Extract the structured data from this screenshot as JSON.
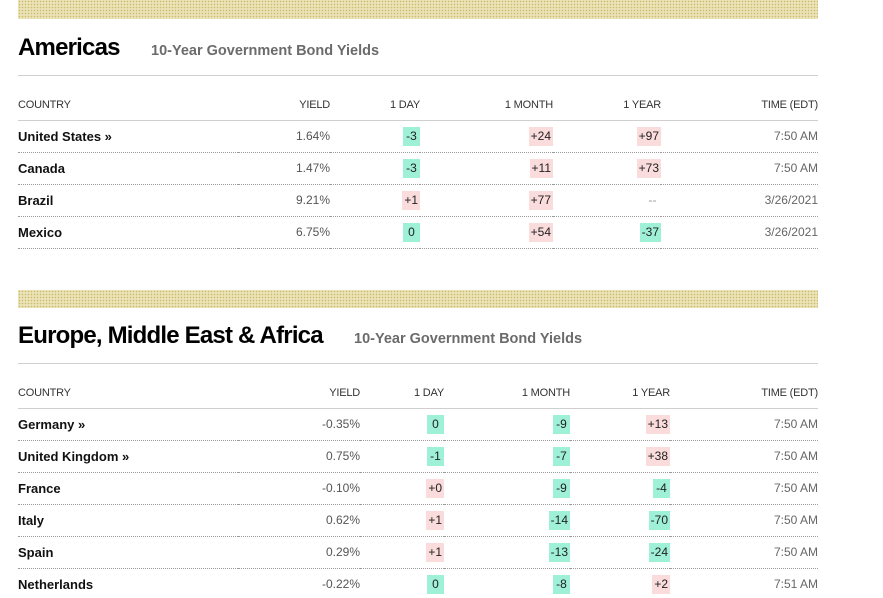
{
  "americas": {
    "title": "Americas",
    "subtitle": "10-Year Government Bond Yields",
    "columns": [
      "COUNTRY",
      "YIELD",
      "1 DAY",
      "1 MONTH",
      "1 YEAR",
      "TIME (EDT)"
    ],
    "rows": [
      {
        "country": "United States »",
        "yield": "1.64%",
        "day": "-3",
        "month": "+24",
        "year": "+97",
        "time": "7:50 AM"
      },
      {
        "country": "Canada",
        "yield": "1.47%",
        "day": "-3",
        "month": "+11",
        "year": "+73",
        "time": "7:50 AM"
      },
      {
        "country": "Brazil",
        "yield": "9.21%",
        "day": "+1",
        "month": "+77",
        "year": "--",
        "time": "3/26/2021"
      },
      {
        "country": "Mexico",
        "yield": "6.75%",
        "day": "0",
        "month": "+54",
        "year": "-37",
        "time": "3/26/2021"
      }
    ]
  },
  "emea": {
    "title": "Europe, Middle East & Africa",
    "subtitle": "10-Year Government Bond Yields",
    "columns": [
      "COUNTRY",
      "YIELD",
      "1 DAY",
      "1 MONTH",
      "1 YEAR",
      "TIME (EDT)"
    ],
    "rows": [
      {
        "country": "Germany »",
        "yield": "-0.35%",
        "day": "0",
        "month": "-9",
        "year": "+13",
        "time": "7:50 AM"
      },
      {
        "country": "United Kingdom »",
        "yield": "0.75%",
        "day": "-1",
        "month": "-7",
        "year": "+38",
        "time": "7:50 AM"
      },
      {
        "country": "France",
        "yield": "-0.10%",
        "day": "+0",
        "month": "-9",
        "year": "-4",
        "time": "7:50 AM"
      },
      {
        "country": "Italy",
        "yield": "0.62%",
        "day": "+1",
        "month": "-14",
        "year": "-70",
        "time": "7:50 AM"
      },
      {
        "country": "Spain",
        "yield": "0.29%",
        "day": "+1",
        "month": "-13",
        "year": "-24",
        "time": "7:50 AM"
      },
      {
        "country": "Netherlands",
        "yield": "-0.22%",
        "day": "0",
        "month": "-8",
        "year": "+2",
        "time": "7:51 AM"
      }
    ]
  },
  "colors": {
    "negative_bg": "#9ef0d6",
    "positive_bg": "#fbdcdc",
    "band": "#ebe3b8"
  }
}
